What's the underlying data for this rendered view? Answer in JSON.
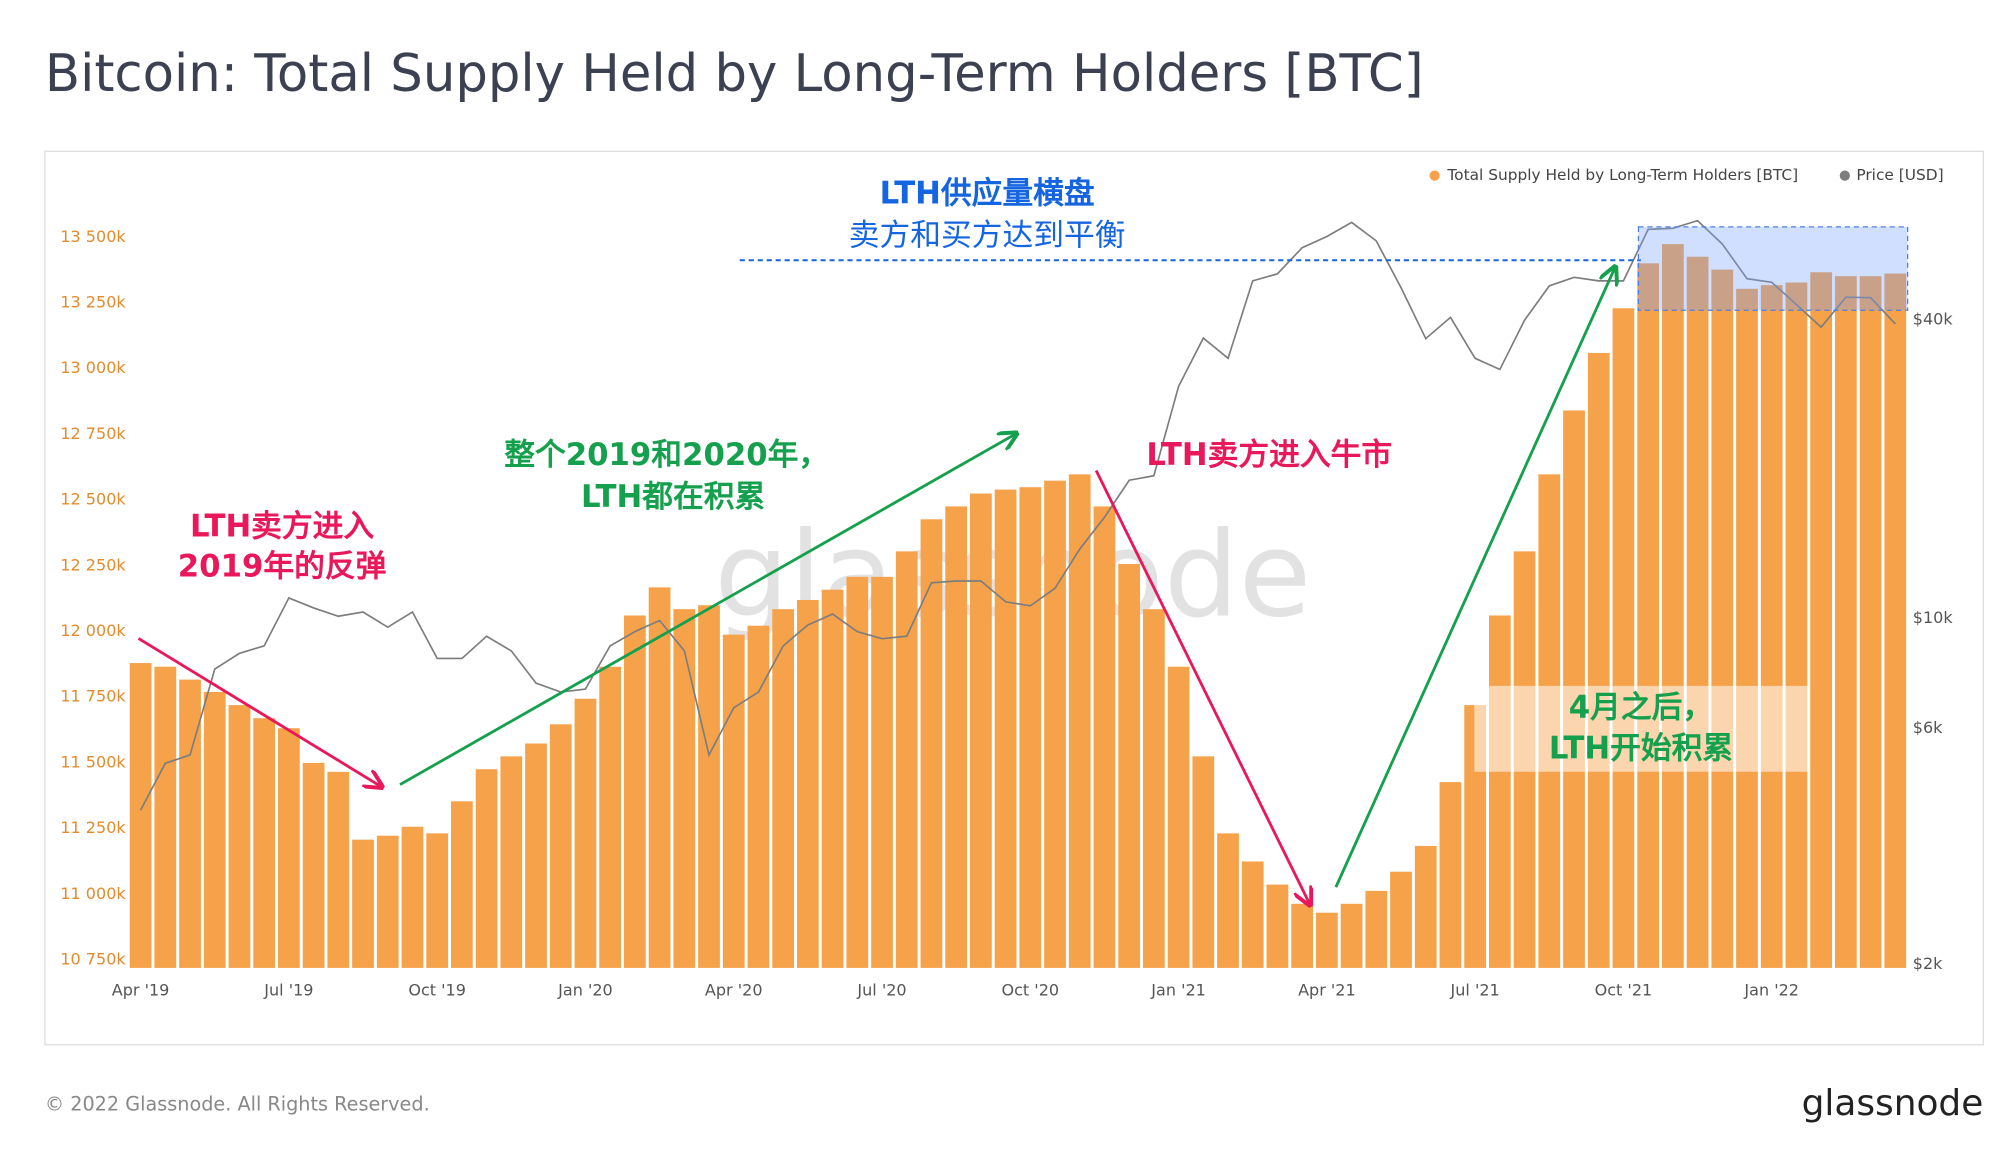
{
  "chart_data": {
    "type": "bar",
    "title": "Bitcoin: Total Supply Held by Long-Term Holders [BTC]",
    "categories": [
      "Apr '19",
      null,
      null,
      null,
      null,
      null,
      "Jul '19",
      null,
      null,
      null,
      null,
      null,
      "Oct '19",
      null,
      null,
      null,
      null,
      null,
      "Jan '20",
      null,
      null,
      null,
      null,
      null,
      "Apr '20",
      null,
      null,
      null,
      null,
      null,
      "Jul '20",
      null,
      null,
      null,
      null,
      null,
      "Oct '20",
      null,
      null,
      null,
      null,
      null,
      "Jan '21",
      null,
      null,
      null,
      null,
      null,
      "Apr '21",
      null,
      null,
      null,
      null,
      null,
      "Jul '21",
      null,
      null,
      null,
      null,
      null,
      "Oct '21",
      null,
      null,
      null,
      null,
      null,
      "Jan '22",
      null,
      null,
      null,
      null,
      null
    ],
    "series": [
      {
        "name": "Total Supply Held by Long-Term Holders [BTC]",
        "color": "#f5a24a",
        "values": [
          11880000,
          11866000,
          11817000,
          11770000,
          11720000,
          11670000,
          11632000,
          11500000,
          11466000,
          11208000,
          11223000,
          11257000,
          11232000,
          11354000,
          11476000,
          11525000,
          11574000,
          11647000,
          11744000,
          11866000,
          12061000,
          12168000,
          12085000,
          12100000,
          11988000,
          12022000,
          12085000,
          12120000,
          12159000,
          12208000,
          12208000,
          12305000,
          12427000,
          12476000,
          12525000,
          12540000,
          12549000,
          12574000,
          12598000,
          12476000,
          12257000,
          12085000,
          11866000,
          11525000,
          11232000,
          11125000,
          11037000,
          10964000,
          10930000,
          10964000,
          11013000,
          11086000,
          11184000,
          11427000,
          11720000,
          12061000,
          12305000,
          12598000,
          12841000,
          13060000,
          13230000,
          13401000,
          13474000,
          13426000,
          13377000,
          13304000,
          13318000,
          13328000,
          13367000,
          13352000,
          13352000,
          13362000
        ]
      },
      {
        "name": "Price [USD]",
        "color": "#7d7d7d",
        "type": "line",
        "axis": "y2",
        "values": [
          4100,
          5100,
          5300,
          7900,
          8500,
          8800,
          11000,
          10500,
          10100,
          10300,
          9600,
          10300,
          8300,
          8300,
          9200,
          8600,
          7400,
          7100,
          7200,
          8800,
          9400,
          9900,
          8600,
          5300,
          6600,
          7100,
          8800,
          9700,
          10200,
          9400,
          9100,
          9200,
          11800,
          11900,
          11900,
          10800,
          10600,
          11500,
          13800,
          16000,
          19000,
          19400,
          29400,
          36800,
          33500,
          48000,
          49600,
          56000,
          59000,
          63000,
          57800,
          46500,
          36700,
          40500,
          33500,
          31800,
          40000,
          46900,
          48800,
          48000,
          48000,
          61000,
          61300,
          63500,
          57000,
          48500,
          47700,
          43000,
          38700,
          44500,
          44400,
          39300
        ]
      }
    ],
    "ylim": [
      10720000,
      13720000
    ],
    "yticks": [
      {
        "value": 10750000,
        "label": "10 750k"
      },
      {
        "value": 11000000,
        "label": "11 000k"
      },
      {
        "value": 11250000,
        "label": "11 250k"
      },
      {
        "value": 11500000,
        "label": "11 500k"
      },
      {
        "value": 11750000,
        "label": "11 750k"
      },
      {
        "value": 12000000,
        "label": "12 000k"
      },
      {
        "value": 12250000,
        "label": "12 250k"
      },
      {
        "value": 12500000,
        "label": "12 500k"
      },
      {
        "value": 12750000,
        "label": "12 750k"
      },
      {
        "value": 13000000,
        "label": "13 000k"
      },
      {
        "value": 13250000,
        "label": "13 250k"
      },
      {
        "value": 13500000,
        "label": "13 500k"
      }
    ],
    "y2lim": [
      1970,
      76900
    ],
    "y2log": true,
    "y2ticks": [
      {
        "value": 2000,
        "label": "$2k"
      },
      {
        "value": 6000,
        "label": "$6k"
      },
      {
        "value": 10000,
        "label": "$10k"
      },
      {
        "value": 40000,
        "label": "$40k"
      }
    ],
    "grid": true,
    "legend": "top-right",
    "annotations": [
      "LTH供应量横盘",
      "卖方和买方达到平衡",
      "整个2019和2020年，",
      "LTH都在积累",
      "LTH卖方进入",
      "2019年的反弹",
      "LTH卖方进入牛市",
      "4月之后，",
      "LTH开始积累"
    ],
    "watermark": "glassnode",
    "copyright": "© 2022 Glassnode. All Rights Reserved.",
    "logo": "glassnode"
  }
}
